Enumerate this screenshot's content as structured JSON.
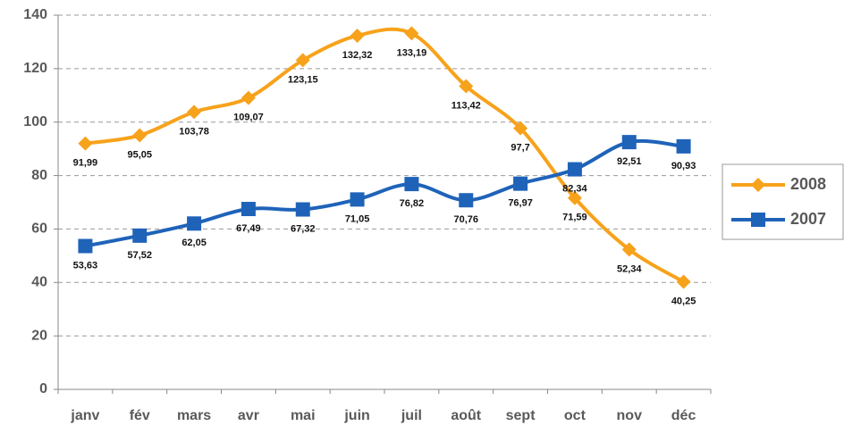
{
  "chart_data": {
    "type": "line",
    "categories": [
      "janv",
      "fév",
      "mars",
      "avr",
      "mai",
      "juin",
      "juil",
      "août",
      "sept",
      "oct",
      "nov",
      "déc"
    ],
    "series": [
      {
        "name": "2008",
        "color": "#f7a21b",
        "marker": "diamond",
        "values": [
          91.99,
          95.05,
          103.78,
          109.07,
          123.15,
          132.32,
          133.19,
          113.42,
          97.7,
          71.59,
          52.34,
          40.25
        ],
        "value_labels": [
          "91,99",
          "95,05",
          "103,78",
          "109,07",
          "123,15",
          "132,32",
          "133,19",
          "113,42",
          "97,7",
          "71,59",
          "52,34",
          "40,25"
        ]
      },
      {
        "name": "2007",
        "color": "#1f63b9",
        "marker": "square",
        "values": [
          53.63,
          57.52,
          62.05,
          67.49,
          67.32,
          71.05,
          76.82,
          70.76,
          76.97,
          82.34,
          92.51,
          90.93
        ],
        "value_labels": [
          "53,63",
          "57,52",
          "62,05",
          "67,49",
          "67,32",
          "71,05",
          "76,82",
          "70,76",
          "76,97",
          "82,34",
          "92,51",
          "90,93"
        ]
      }
    ],
    "ylim": [
      0,
      140
    ],
    "yticks": [
      0,
      20,
      40,
      60,
      80,
      100,
      120,
      140
    ],
    "grid": true,
    "legend": "right",
    "smooth": true
  }
}
